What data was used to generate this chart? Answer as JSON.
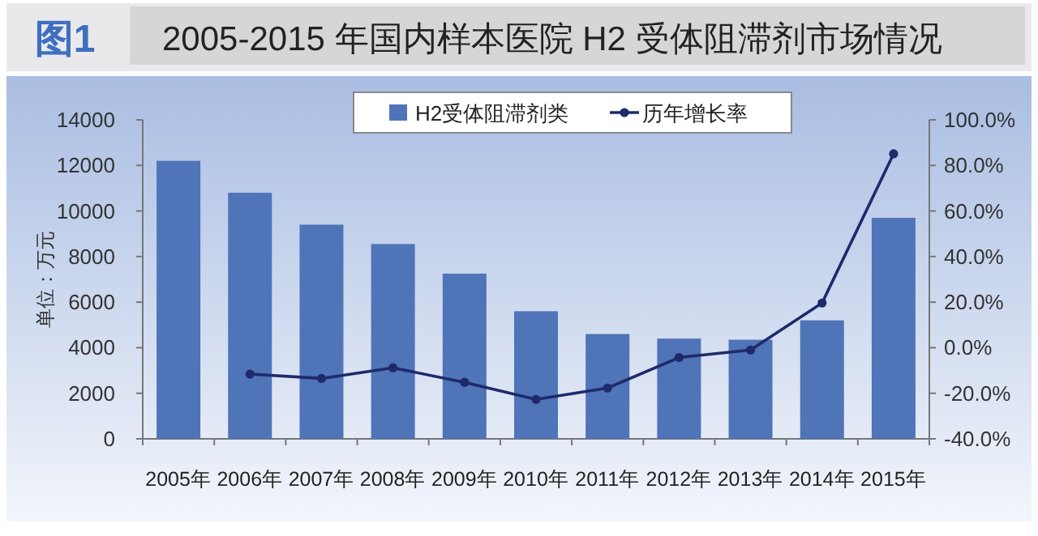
{
  "chart_data": {
    "type": "bar",
    "title": "2005-2015 年国内样本医院 H2 受体阻滞剂市场情况",
    "annotations": [
      "图1"
    ],
    "ylabel": "单位：万元",
    "categories": [
      "2005年",
      "2006年",
      "2007年",
      "2008年",
      "2009年",
      "2010年",
      "2011年",
      "2012年",
      "2013年",
      "2014年",
      "2015年"
    ],
    "series": [
      {
        "name": "H2受体阻滞剂类",
        "color": "#4f74b8",
        "values": [
          12200,
          10800,
          9400,
          8550,
          7250,
          5600,
          4600,
          4400,
          4350,
          5200,
          9700
        ]
      },
      {
        "name": "历年增长率",
        "type": "line",
        "axis": "y2",
        "color": "#1f2a6b",
        "marker": "circle",
        "values": [
          null,
          -11.6,
          -13.5,
          -8.8,
          -15.2,
          -22.7,
          -17.7,
          -4.3,
          -1.0,
          19.6,
          85.1
        ]
      }
    ],
    "ylim": [
      0,
      14000
    ],
    "yticks": [
      0,
      2000,
      4000,
      6000,
      8000,
      10000,
      12000,
      14000
    ],
    "y2lim": [
      -40,
      100
    ],
    "y2ticks": [
      {
        "value": -40,
        "label": "-40.0%"
      },
      {
        "value": -20,
        "label": "-20.0%"
      },
      {
        "value": 0,
        "label": "0.0%"
      },
      {
        "value": 20,
        "label": "20.0%"
      },
      {
        "value": 40,
        "label": "40.0%"
      },
      {
        "value": 60,
        "label": "60.0%"
      },
      {
        "value": 80,
        "label": "80.0%"
      },
      {
        "value": 100,
        "label": "100.0%"
      }
    ],
    "legend": "top",
    "grid": false
  }
}
